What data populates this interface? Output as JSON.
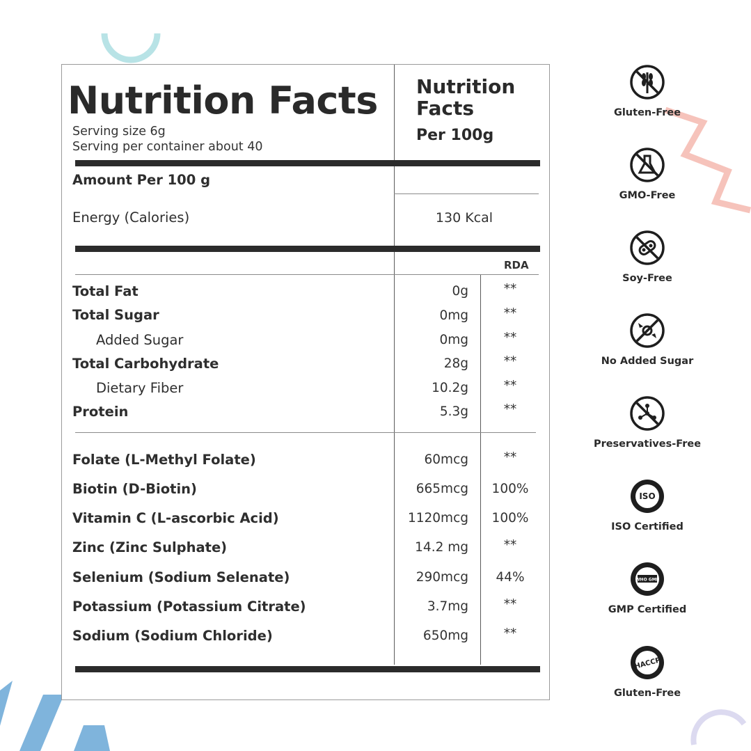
{
  "left_title": "Nutrition Facts",
  "serving_size": "Serving size 6g",
  "servings_per_container": "Serving per container about 40",
  "right_title": "Nutrition Facts",
  "right_per": "Per 100g",
  "amount_label": "Amount Per 100 g",
  "energy": {
    "label": "Energy (Calories)",
    "value": "130 Kcal"
  },
  "rda_header": "RDA",
  "macros": [
    {
      "label": "Total Fat",
      "value": "0g",
      "rda": "**"
    },
    {
      "label": "Total Sugar",
      "value": "0mg",
      "rda": "**"
    },
    {
      "label": "Added Sugar",
      "value": "0mg",
      "rda": "**"
    },
    {
      "label": "Total Carbohydrate",
      "value": "28g",
      "rda": "**"
    },
    {
      "label": "Dietary Fiber",
      "value": "10.2g",
      "rda": "**"
    },
    {
      "label": "Protein",
      "value": "5.3g",
      "rda": "**"
    }
  ],
  "micros": [
    {
      "label": "Folate (L-Methyl Folate)",
      "value": "60mcg",
      "rda": "**"
    },
    {
      "label": "Biotin (D-Biotin)",
      "value": "665mcg",
      "rda": "100%"
    },
    {
      "label": "Vitamin C (L-ascorbic Acid)",
      "value": "1120mcg",
      "rda": "100%"
    },
    {
      "label": "Zinc (Zinc Sulphate)",
      "value": "14.2 mg",
      "rda": "**"
    },
    {
      "label": "Selenium (Sodium Selenate)",
      "value": "290mcg",
      "rda": "44%"
    },
    {
      "label": "Potassium (Potassium Citrate)",
      "value": "3.7mg",
      "rda": "**"
    },
    {
      "label": "Sodium (Sodium Chloride)",
      "value": "650mg",
      "rda": "**"
    }
  ],
  "badges": [
    {
      "label": "Gluten-Free",
      "icon": "wheat-crossed-icon"
    },
    {
      "label": "GMO-Free",
      "icon": "flask-crossed-icon"
    },
    {
      "label": "Soy-Free",
      "icon": "soy-crossed-icon"
    },
    {
      "label": "No Added Sugar",
      "icon": "candy-crossed-icon"
    },
    {
      "label": "Preservatives-Free",
      "icon": "molecule-crossed-icon"
    },
    {
      "label": "ISO Certified",
      "icon": "iso-seal-icon",
      "seal_text": "ISO"
    },
    {
      "label": "GMP Certified",
      "icon": "gmp-seal-icon",
      "seal_text": "WHO GMP"
    },
    {
      "label": "Gluten-Free",
      "icon": "haccp-seal-icon",
      "seal_text": "HACCP"
    }
  ],
  "colors": {
    "accent_teal": "#b8e3e6",
    "accent_coral": "#f6c3bb",
    "accent_blue": "#7fb4dc",
    "accent_lavender": "#dcdaf0",
    "rule": "#2b2b2b"
  }
}
